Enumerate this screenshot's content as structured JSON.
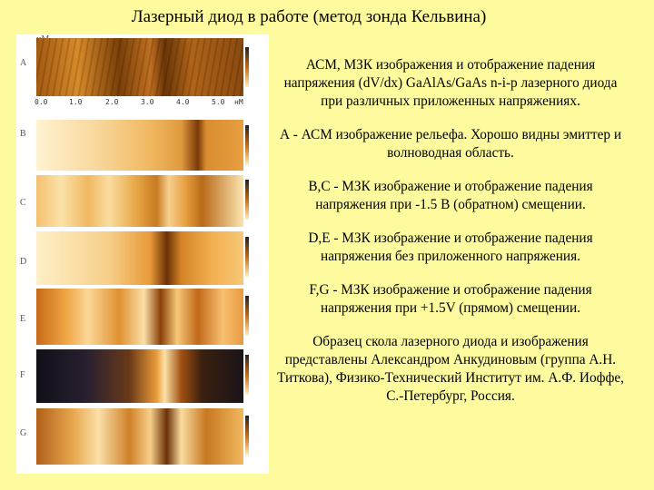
{
  "header": {
    "title": "Лазерный диод в работе (метод зонда Кельвина)"
  },
  "figure": {
    "panel_labels": [
      "A",
      "B",
      "C",
      "D",
      "E",
      "F",
      "G"
    ],
    "axis_unit": "нМ",
    "axis_ticks": [
      "0.0",
      "1.0",
      "2.0",
      "3.0",
      "4.0",
      "5.0"
    ]
  },
  "paragraphs": [
    "АСМ, МЗК изображения и отображение падения напряжения (dV/dx) GaAlAs/GaAs n-i-p лазерного диода при различных приложенных напряжениях.",
    "А - АСМ изображение рельефа. Хорошо видны эмиттер и волноводная область.",
    "B,C - МЗК изображение и отображение падения напряжения при -1.5 В (обратном) смещении.",
    "D,E - МЗК изображение и отображение падения напряжения без приложенного напряжения.",
    "F,G - МЗК изображение и отображение падения напряжения при +1.5V (прямом) смещении.",
    "Образец скола лазерного диода и изображения представлены Александром Анкудиновым (группа А.Н. Титкова), Физико-Технический Институт им. А.Ф. Иоффе, С.-Петербург, Россия."
  ]
}
